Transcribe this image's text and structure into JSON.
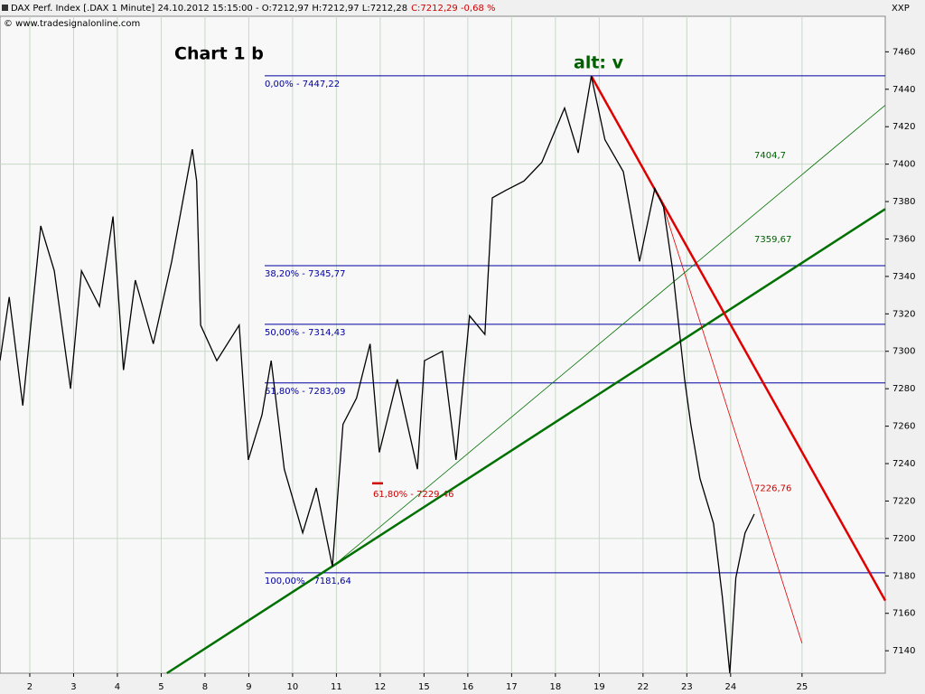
{
  "chart_data": {
    "type": "line",
    "header": "DAX Perf. Index [.DAX  1 Minute] 24.10.2012 15:15:00 - O:7212,97 H:7212,97 L:7212,28",
    "header_close": "C:7212,29 -0,68 %",
    "copyright": "© www.tradesignalonline.com",
    "title": "Chart 1 b",
    "wave_label": "alt: v",
    "axis_label": "XXP",
    "xlim": [
      -0.68,
      19.53
    ],
    "ylim": [
      7128,
      7479
    ],
    "yticks": [
      7140,
      7160,
      7180,
      7200,
      7220,
      7240,
      7260,
      7280,
      7300,
      7320,
      7340,
      7360,
      7380,
      7400,
      7420,
      7440,
      7460
    ],
    "ygrid": [
      7200,
      7300,
      7400
    ],
    "xticks": [
      {
        "value": 0,
        "label": "2"
      },
      {
        "value": 1,
        "label": "3"
      },
      {
        "value": 2,
        "label": "4"
      },
      {
        "value": 3,
        "label": "5"
      },
      {
        "value": 4,
        "label": "8"
      },
      {
        "value": 5,
        "label": "9"
      },
      {
        "value": 6,
        "label": "10"
      },
      {
        "value": 7,
        "label": "11"
      },
      {
        "value": 8,
        "label": "12"
      },
      {
        "value": 9,
        "label": "15"
      },
      {
        "value": 10,
        "label": "16"
      },
      {
        "value": 11,
        "label": "17"
      },
      {
        "value": 12,
        "label": "18"
      },
      {
        "value": 13,
        "label": "19"
      },
      {
        "value": 14,
        "label": "22"
      },
      {
        "value": 15,
        "label": "23"
      },
      {
        "value": 16,
        "label": "24"
      },
      {
        "value": 17.63,
        "label": "25"
      }
    ],
    "series": [
      {
        "name": "DAX",
        "color": "#000000",
        "x": [
          -0.68,
          -0.47,
          -0.16,
          0.25,
          0.56,
          0.93,
          1.18,
          1.59,
          1.9,
          2.14,
          2.41,
          2.82,
          3.24,
          3.71,
          3.81,
          3.9,
          4.27,
          4.78,
          4.99,
          5.3,
          5.51,
          5.81,
          6.23,
          6.54,
          6.91,
          7.15,
          7.46,
          7.77,
          7.98,
          8.39,
          8.85,
          9.01,
          9.42,
          9.73,
          10.04,
          10.39,
          10.56,
          10.87,
          11.28,
          11.69,
          12.21,
          12.52,
          12.82,
          13.13,
          13.55,
          13.92,
          14.27,
          14.47,
          14.68,
          14.95,
          15.09,
          15.3,
          15.61,
          15.81,
          15.98,
          16.12,
          16.33,
          16.54
        ],
        "values": [
          7295,
          7329,
          7271,
          7367,
          7343,
          7280,
          7343,
          7324,
          7372,
          7290,
          7338,
          7304,
          7348,
          7408,
          7391,
          7314,
          7295,
          7314,
          7242,
          7266,
          7295,
          7237,
          7203,
          7227,
          7185,
          7261,
          7275,
          7304,
          7246,
          7285,
          7237,
          7295,
          7300,
          7242,
          7319,
          7309,
          7382,
          7386,
          7391,
          7401,
          7430,
          7406,
          7447,
          7413,
          7396,
          7348,
          7387,
          7377,
          7343,
          7285,
          7261,
          7232,
          7208,
          7169,
          7128,
          7179,
          7203,
          7213
        ]
      }
    ],
    "fib_levels": [
      {
        "label": "0,00% - 7447,22",
        "value": 7447.22
      },
      {
        "label": "38,20% - 7345,77",
        "value": 7345.77
      },
      {
        "label": "50,00% - 7314,43",
        "value": 7314.43
      },
      {
        "label": "61,80% - 7283,09",
        "value": 7283.09
      },
      {
        "label": "100,00% - 7181,64",
        "value": 7181.64
      }
    ],
    "fib_marker": {
      "label": "61,80% - 7229,46",
      "value": 7229.46,
      "color": "#d00000"
    },
    "trend_lines": [
      {
        "color": "#007000",
        "width": 2.5,
        "x": [
          3.13,
          19.53
        ],
        "y": [
          7128,
          7376
        ]
      },
      {
        "color": "#007000",
        "width": 0.8,
        "x": [
          6.91,
          19.53
        ],
        "y": [
          7185,
          7431.5
        ]
      },
      {
        "color": "#e00000",
        "width": 2.5,
        "x": [
          12.82,
          19.53
        ],
        "y": [
          7447,
          7166.8
        ]
      },
      {
        "color": "#e00000",
        "width": 0.8,
        "x": [
          14.47,
          17.63
        ],
        "y": [
          7377,
          7144
        ]
      }
    ],
    "trend_labels": [
      {
        "label": "7404,7",
        "value": 7404.7,
        "color": "#006000"
      },
      {
        "label": "7359,67",
        "value": 7359.67,
        "color": "#006000"
      },
      {
        "label": "7226,76",
        "value": 7226.76,
        "color": "#d00000"
      }
    ]
  }
}
